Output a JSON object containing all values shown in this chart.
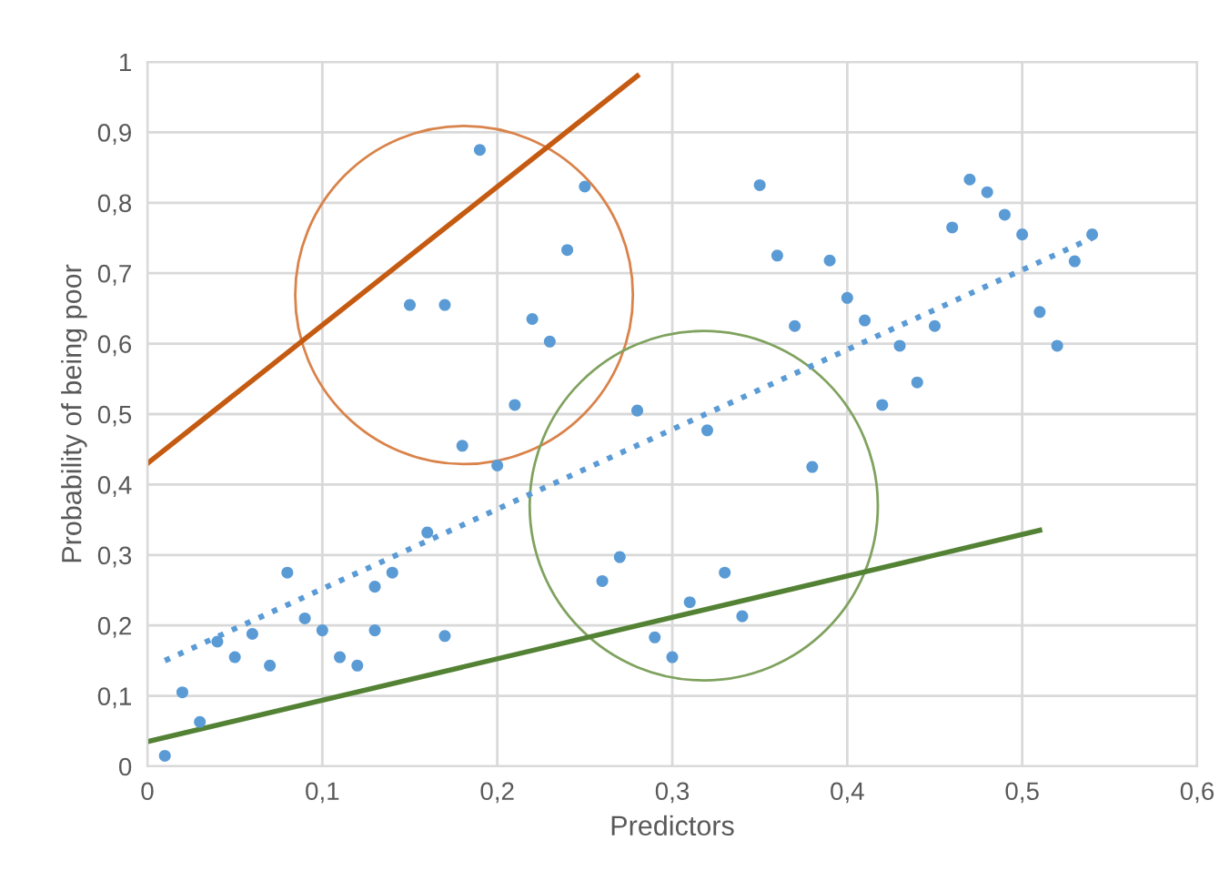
{
  "chart_data": {
    "type": "scatter",
    "xlabel": "Predictors",
    "ylabel": "Probability of being poor",
    "xlim": [
      0,
      0.6
    ],
    "ylim": [
      0,
      1
    ],
    "xticks": [
      0,
      {
        "value": 0.1,
        "label": "0,1"
      },
      {
        "value": 0.2,
        "label": "0,2"
      },
      {
        "value": 0.3,
        "label": "0,3"
      },
      {
        "value": 0.4,
        "label": "0,4"
      },
      {
        "value": 0.5,
        "label": "0,5"
      },
      {
        "value": 0.6,
        "label": "0,6"
      }
    ],
    "yticks": [
      0,
      {
        "value": 0.1,
        "label": "0,1"
      },
      {
        "value": 0.2,
        "label": "0,2"
      },
      {
        "value": 0.3,
        "label": "0,3"
      },
      {
        "value": 0.4,
        "label": "0,4"
      },
      {
        "value": 0.5,
        "label": "0,5"
      },
      {
        "value": 0.6,
        "label": "0,6"
      },
      {
        "value": 0.7,
        "label": "0,7"
      },
      {
        "value": 0.8,
        "label": "0,8"
      },
      {
        "value": 0.9,
        "label": "0,9"
      },
      1
    ],
    "grid": true,
    "series": [
      {
        "marker": "circle",
        "color": "#5b9bd5",
        "x": [
          0.01,
          0.02,
          0.03,
          0.04,
          0.05,
          0.06,
          0.07,
          0.08,
          0.09,
          0.1,
          0.11,
          0.12,
          0.13,
          0.13,
          0.14,
          0.15,
          0.16,
          0.17,
          0.17,
          0.18,
          0.19,
          0.2,
          0.21,
          0.22,
          0.23,
          0.24,
          0.25,
          0.26,
          0.27,
          0.28,
          0.29,
          0.3,
          0.31,
          0.32,
          0.33,
          0.34,
          0.35,
          0.36,
          0.37,
          0.38,
          0.39,
          0.4,
          0.41,
          0.42,
          0.43,
          0.44,
          0.45,
          0.46,
          0.47,
          0.48,
          0.49,
          0.5,
          0.51,
          0.52,
          0.53,
          0.54
        ],
        "values": [
          0.015,
          0.105,
          0.063,
          0.177,
          0.155,
          0.188,
          0.143,
          0.275,
          0.21,
          0.193,
          0.155,
          0.143,
          0.255,
          0.193,
          0.275,
          0.655,
          0.332,
          0.185,
          0.655,
          0.455,
          0.875,
          0.427,
          0.513,
          0.635,
          0.603,
          0.733,
          0.823,
          0.263,
          0.297,
          0.505,
          0.183,
          0.155,
          0.233,
          0.477,
          0.275,
          0.213,
          0.825,
          0.725,
          0.625,
          0.425,
          0.718,
          0.665,
          0.633,
          0.513,
          0.597,
          0.545,
          0.625,
          0.765,
          0.833,
          0.815,
          0.783,
          0.755,
          0.645,
          0.597,
          0.717,
          0.755
        ]
      },
      {
        "type": "line",
        "color": "#5b9bd5",
        "line_style": "dotted",
        "marker": "none",
        "x": [
          0.01,
          0.54
        ],
        "values": [
          0.15,
          0.75
        ]
      },
      {
        "type": "line",
        "color": "#c55a11",
        "line_style": "solid",
        "marker": "none",
        "x": [
          0,
          0.28
        ],
        "values": [
          0.43,
          0.98
        ]
      },
      {
        "type": "line",
        "color": "#548235",
        "line_style": "solid",
        "marker": "none",
        "x": [
          0,
          0.51
        ],
        "values": [
          0.035,
          0.335
        ]
      }
    ]
  }
}
